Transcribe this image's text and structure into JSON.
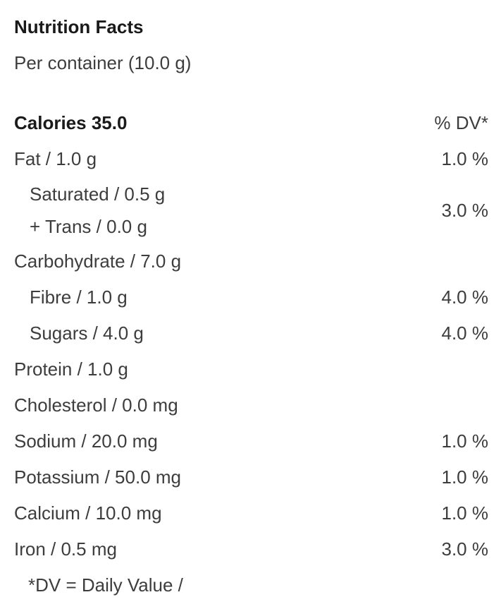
{
  "title": "Nutrition Facts",
  "serving": "Per container (10.0 g)",
  "calories": {
    "label": "Calories 35.0",
    "dv_header": "% DV*"
  },
  "rows": [
    {
      "label": "Fat / 1.0 g",
      "dv": "1.0 %"
    },
    {
      "line1": "Saturated / 0.5 g",
      "line2": "+ Trans / 0.0 g",
      "dv": "3.0 %"
    },
    {
      "label": "Carbohydrate / 7.0 g",
      "dv": ""
    },
    {
      "label": "Fibre / 1.0 g",
      "dv": "4.0 %"
    },
    {
      "label": "Sugars / 4.0 g",
      "dv": "4.0 %"
    },
    {
      "label": "Protein / 1.0 g",
      "dv": ""
    },
    {
      "label": "Cholesterol / 0.0 mg",
      "dv": ""
    },
    {
      "label": "Sodium / 20.0 mg",
      "dv": "1.0 %"
    },
    {
      "label": "Potassium / 50.0 mg",
      "dv": "1.0 %"
    },
    {
      "label": "Calcium / 10.0 mg",
      "dv": "1.0 %"
    },
    {
      "label": "Iron / 0.5 mg",
      "dv": "3.0 %"
    }
  ],
  "footnote": "*DV = Daily Value /",
  "colors": {
    "heading_text": "#1a1a1a",
    "body_text": "#3d3d3d",
    "background": "#ffffff"
  }
}
